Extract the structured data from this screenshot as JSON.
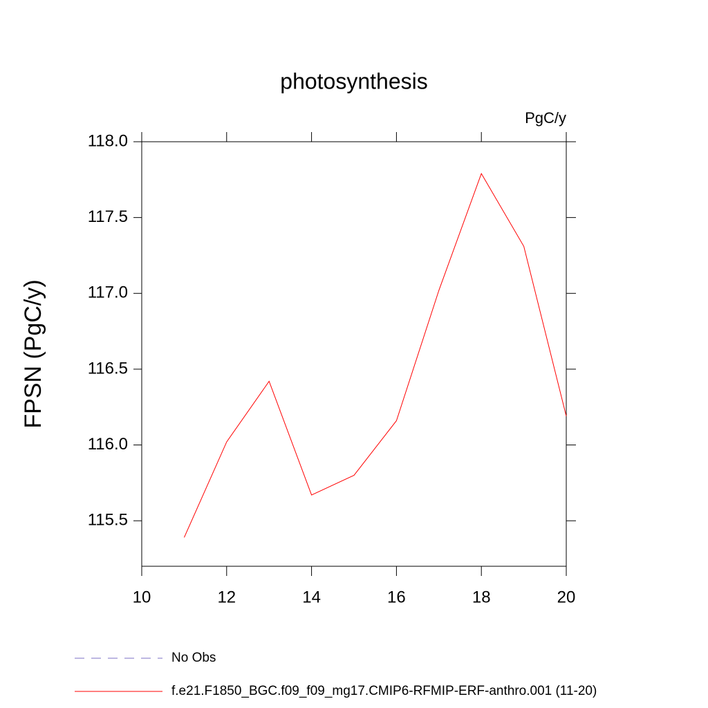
{
  "chart_data": {
    "type": "line",
    "title": "photosynthesis",
    "units_label": "PgC/y",
    "y_label": "FPSN  (PgC/y)",
    "x": [
      11,
      12,
      13,
      14,
      15,
      16,
      17,
      18,
      19,
      20
    ],
    "series": [
      {
        "name": "No Obs",
        "color": "#7b6fc4",
        "dashed": true,
        "values": [
          null,
          null,
          null,
          null,
          null,
          null,
          null,
          null,
          null,
          null
        ]
      },
      {
        "name": "f.e21.F1850_BGC.f09_f09_mg17.CMIP6-RFMIP-ERF-anthro.001 (11-20)",
        "color": "#ff0000",
        "dashed": false,
        "values": [
          115.39,
          116.02,
          116.42,
          115.67,
          115.8,
          116.16,
          117.02,
          117.79,
          117.31,
          116.19
        ]
      }
    ],
    "xlim": [
      10,
      20
    ],
    "xticks": [
      10,
      12,
      14,
      16,
      18,
      20
    ],
    "ylim": [
      115.2,
      118.0
    ],
    "yticks": [
      {
        "value": 115.5,
        "label": "115.5"
      },
      {
        "value": 116,
        "label": "116.0"
      },
      {
        "value": 116.5,
        "label": "116.5"
      },
      {
        "value": 117,
        "label": "117.0"
      },
      {
        "value": 117.5,
        "label": "117.5"
      },
      {
        "value": 118,
        "label": "118.0"
      }
    ],
    "grid": false
  }
}
